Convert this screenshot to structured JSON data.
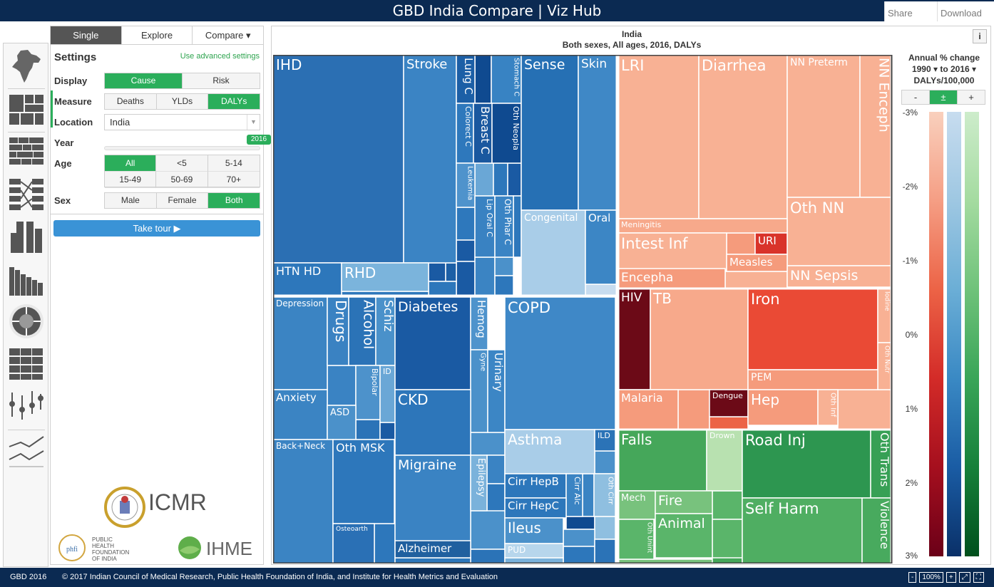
{
  "header": {
    "title": "GBD India Compare | Viz Hub",
    "share": "Share",
    "download": "Download"
  },
  "icon_rail": [
    "india-map-icon",
    "treemap-icon",
    "stacked-bar-icon",
    "arrow-diagram-icon",
    "bar-stack-icon",
    "stacked-column-icon",
    "sunburst-icon",
    "heatmap-icon",
    "range-plot-icon",
    "line-chart-icon"
  ],
  "tabs": {
    "single": "Single",
    "explore": "Explore",
    "compare": "Compare ▾"
  },
  "settings": {
    "title": "Settings",
    "advanced_link": "Use advanced settings",
    "display": {
      "label": "Display",
      "options": [
        "Cause",
        "Risk"
      ],
      "selected": "Cause"
    },
    "measure": {
      "label": "Measure",
      "options": [
        "Deaths",
        "YLDs",
        "DALYs"
      ],
      "selected": "DALYs"
    },
    "location": {
      "label": "Location",
      "value": "India"
    },
    "year": {
      "label": "Year",
      "value": "2016"
    },
    "age": {
      "label": "Age",
      "options": [
        "All",
        "<5",
        "5-14",
        "15-49",
        "50-69",
        "70+"
      ],
      "selected": "All"
    },
    "sex": {
      "label": "Sex",
      "options": [
        "Male",
        "Female",
        "Both"
      ],
      "selected": "Both"
    },
    "tour_button": "Take tour ▶"
  },
  "logos": {
    "icmr": "ICMR",
    "phfi": "PUBLIC HEALTH FOUNDATION OF INDIA",
    "ihme": "IHME"
  },
  "viz": {
    "title": "India",
    "subtitle": "Both sexes, All ages, 2016, DALYs",
    "info": "i"
  },
  "legend": {
    "title1": "Annual % change",
    "title2": "1990 ▾ to 2016 ▾",
    "title3": "DALYs/100,000",
    "toggle": [
      "-",
      "±",
      "+"
    ],
    "toggle_selected": "±",
    "ticks": [
      "-3%",
      "-2%",
      "-1%",
      "0%",
      "1%",
      "2%",
      "3%"
    ],
    "ramp_colors": {
      "red": [
        "#f9d0bd",
        "#f59e84",
        "#ec6346",
        "#d32b28",
        "#a50f1e",
        "#6b0018"
      ],
      "blue": [
        "#c7dcef",
        "#9ec7e2",
        "#6baed6",
        "#3a89c4",
        "#1a5ca4",
        "#0a3068"
      ],
      "green": [
        "#cdeccb",
        "#a4dba0",
        "#6fc27a",
        "#39a558",
        "#16803a",
        "#00501c"
      ]
    }
  },
  "treemap": {
    "colors": {
      "outline": "#444444",
      "divider": "#ffffff"
    },
    "cells": [
      {
        "label": "IHD",
        "color": "#2b6fb3"
      },
      {
        "label": "Stroke",
        "color": "#3b84c4"
      },
      {
        "label": "Lung C",
        "color": "#1c5fa6"
      },
      {
        "label": "Stomach C",
        "color": "#3883c3"
      },
      {
        "label": "Colorect C",
        "color": "#2e78bc"
      },
      {
        "label": "Breast C",
        "color": "#1a589f"
      },
      {
        "label": "Oth Neopla",
        "color": "#0f4a90"
      },
      {
        "label": "Leukemia",
        "color": "#4f93cc"
      },
      {
        "label": "Lip Oral C",
        "color": "#3982c2"
      },
      {
        "label": "Oth Phar C",
        "color": "#3a84c4"
      },
      {
        "label": "HTN HD",
        "color": "#2d77bb"
      },
      {
        "label": "RHD",
        "color": "#7bb4dc"
      },
      {
        "label": "Sense",
        "color": "#2670b4"
      },
      {
        "label": "Skin",
        "color": "#3f88c6"
      },
      {
        "label": "Congenital",
        "color": "#a9cde8"
      },
      {
        "label": "Oral",
        "color": "#3c86c5"
      },
      {
        "label": "Depression",
        "color": "#3b84c3"
      },
      {
        "label": "Drugs",
        "color": "#3a82c2"
      },
      {
        "label": "Alcohol",
        "color": "#2b73b7"
      },
      {
        "label": "Schiz",
        "color": "#4a91ca"
      },
      {
        "label": "Bipolar",
        "color": "#4d92cb"
      },
      {
        "label": "ID",
        "color": "#6aa7d6"
      },
      {
        "label": "Anxiety",
        "color": "#3b84c3"
      },
      {
        "label": "ASD",
        "color": "#4b91ca"
      },
      {
        "label": "Diabetes",
        "color": "#1a5aa3"
      },
      {
        "label": "Hemog",
        "color": "#4e93cc"
      },
      {
        "label": "Gyne",
        "color": "#4b91ca"
      },
      {
        "label": "Urinary",
        "color": "#3c86c5"
      },
      {
        "label": "CKD",
        "color": "#2d76ba"
      },
      {
        "label": "COPD",
        "color": "#3f88c7"
      },
      {
        "label": "Asthma",
        "color": "#a9cde8"
      },
      {
        "label": "ILD",
        "color": "#2b73b7"
      },
      {
        "label": "Back+Neck",
        "color": "#3b84c3"
      },
      {
        "label": "Oth MSK",
        "color": "#2d77bb"
      },
      {
        "label": "Osteoarth",
        "color": "#2a70b5"
      },
      {
        "label": "Migraine",
        "color": "#3a83c3"
      },
      {
        "label": "Epilepsy",
        "color": "#7ab2db"
      },
      {
        "label": "Alzheimer",
        "color": "#20609f"
      },
      {
        "label": "Cirr HepB",
        "color": "#2d77bb"
      },
      {
        "label": "Cirr Alc",
        "color": "#3b84c3"
      },
      {
        "label": "Oth Cirr",
        "color": "#8fbfe0"
      },
      {
        "label": "Cirr HepC",
        "color": "#2d77bb"
      },
      {
        "label": "Ileus",
        "color": "#4b91ca"
      },
      {
        "label": "PUD",
        "color": "#b7d6ec"
      },
      {
        "label": "LRI",
        "color": "#f8b194"
      },
      {
        "label": "Diarrhea",
        "color": "#f8b194"
      },
      {
        "label": "NN Preterm",
        "color": "#f8b194"
      },
      {
        "label": "NN Enceph",
        "color": "#f8b194"
      },
      {
        "label": "Oth NN",
        "color": "#f8b194"
      },
      {
        "label": "NN Sepsis",
        "color": "#f8b194"
      },
      {
        "label": "Meningitis",
        "color": "#f7a98b"
      },
      {
        "label": "Intest Inf",
        "color": "#f8b194"
      },
      {
        "label": "URI",
        "color": "#d9332a"
      },
      {
        "label": "Measles",
        "color": "#f59b7c"
      },
      {
        "label": "Encepha",
        "color": "#f59b7c"
      },
      {
        "label": "HIV",
        "color": "#6c0a17"
      },
      {
        "label": "TB",
        "color": "#f7a98b"
      },
      {
        "label": "Iron",
        "color": "#ea4a35"
      },
      {
        "label": "Iodine",
        "color": "#f8b194"
      },
      {
        "label": "Oth Nutr",
        "color": "#f8b194"
      },
      {
        "label": "PEM",
        "color": "#f59b7c"
      },
      {
        "label": "Malaria",
        "color": "#f59b7c"
      },
      {
        "label": "Dengue",
        "color": "#6c0a17"
      },
      {
        "label": "Hep",
        "color": "#f59b7c"
      },
      {
        "label": "Oth Inf",
        "color": "#f8b194"
      },
      {
        "label": "Falls",
        "color": "#45a75a"
      },
      {
        "label": "Drown",
        "color": "#b8e1b0"
      },
      {
        "label": "Mech",
        "color": "#78c27d"
      },
      {
        "label": "Fire",
        "color": "#78c27d"
      },
      {
        "label": "Oth Unint",
        "color": "#5ab56a"
      },
      {
        "label": "Animal",
        "color": "#5ab56a"
      },
      {
        "label": "Road Inj",
        "color": "#2d9650"
      },
      {
        "label": "Oth Trans",
        "color": "#37a055"
      },
      {
        "label": "Self Harm",
        "color": "#4fae62"
      },
      {
        "label": "Violence",
        "color": "#48aa5e"
      }
    ]
  },
  "footer": {
    "gbd": "GBD 2016",
    "copyright": "© 2017 Indian Council of Medical Research, Public Health Foundation of India, and Institute for Health Metrics and Evaluation",
    "zoom_out": "-",
    "zoom_level": "100%",
    "zoom_in": "+",
    "fit": "⤢",
    "fullscreen": "⛶"
  }
}
